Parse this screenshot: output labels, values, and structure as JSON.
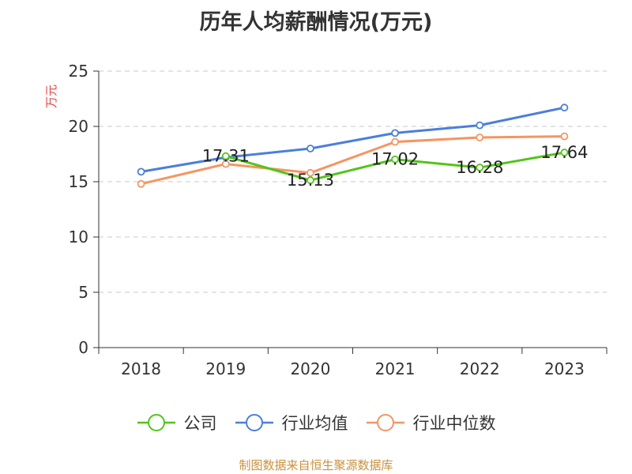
{
  "title": "历年人均薪酬情况(万元)",
  "source_note": "制图数据来自恒生聚源数据库",
  "chart_data": {
    "type": "line",
    "title": "历年人均薪酬情况(万元)",
    "ylabel": "万元",
    "xlabel": "",
    "categories": [
      "2018",
      "2019",
      "2020",
      "2021",
      "2022",
      "2023"
    ],
    "ylim": [
      0,
      25
    ],
    "yticks": [
      0,
      5,
      10,
      15,
      20,
      25
    ],
    "grid": true,
    "legend_position": "bottom",
    "series": [
      {
        "name": "公司",
        "color": "#52c41a",
        "values": [
          null,
          17.31,
          15.13,
          17.02,
          16.28,
          17.64
        ],
        "show_labels": true
      },
      {
        "name": "行业均值",
        "color": "#4a7fdb",
        "values": [
          15.9,
          17.2,
          18.0,
          19.4,
          20.1,
          21.7
        ],
        "show_labels": false
      },
      {
        "name": "行业中位数",
        "color": "#f59562",
        "values": [
          14.8,
          16.6,
          15.8,
          18.6,
          19.0,
          19.1
        ],
        "show_labels": false
      }
    ],
    "label_color": "#222222",
    "ylabel_color": "#e8413f"
  }
}
